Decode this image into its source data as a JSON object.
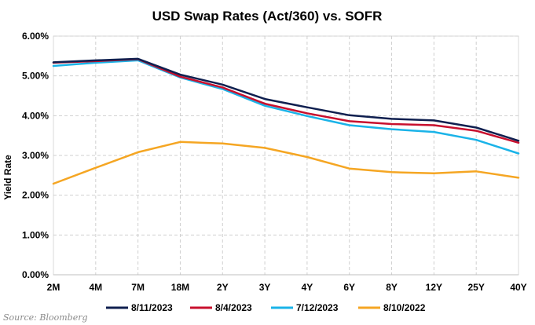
{
  "chart_data": {
    "type": "line",
    "title": "USD Swap Rates (Act/360) vs. SOFR",
    "ylabel": "Yield Rate",
    "xlabel": "",
    "categories": [
      "2M",
      "4M",
      "7M",
      "18M",
      "2Y",
      "3Y",
      "4Y",
      "6Y",
      "8Y",
      "12Y",
      "25Y",
      "40Y"
    ],
    "y_ticks": [
      "0.00%",
      "1.00%",
      "2.00%",
      "3.00%",
      "4.00%",
      "5.00%",
      "6.00%"
    ],
    "ylim": [
      0,
      6
    ],
    "grid": true,
    "legend_position": "bottom",
    "series": [
      {
        "name": "8/11/2023",
        "color": "#0f1f4f",
        "values": [
          5.34,
          5.39,
          5.43,
          5.03,
          4.78,
          4.42,
          4.21,
          4.01,
          3.92,
          3.88,
          3.7,
          3.37
        ]
      },
      {
        "name": "8/4/2023",
        "color": "#c8102e",
        "values": [
          5.33,
          5.37,
          5.42,
          4.98,
          4.71,
          4.3,
          4.06,
          3.86,
          3.79,
          3.76,
          3.62,
          3.32
        ]
      },
      {
        "name": "7/12/2023",
        "color": "#1ab3e8",
        "values": [
          5.25,
          5.33,
          5.39,
          4.96,
          4.67,
          4.25,
          3.99,
          3.76,
          3.66,
          3.59,
          3.39,
          3.05
        ]
      },
      {
        "name": "8/10/2022",
        "color": "#f5a623",
        "values": [
          2.29,
          2.69,
          3.08,
          3.34,
          3.3,
          3.19,
          2.96,
          2.67,
          2.58,
          2.55,
          2.6,
          2.44
        ]
      }
    ]
  },
  "source": "Source: Bloomberg"
}
